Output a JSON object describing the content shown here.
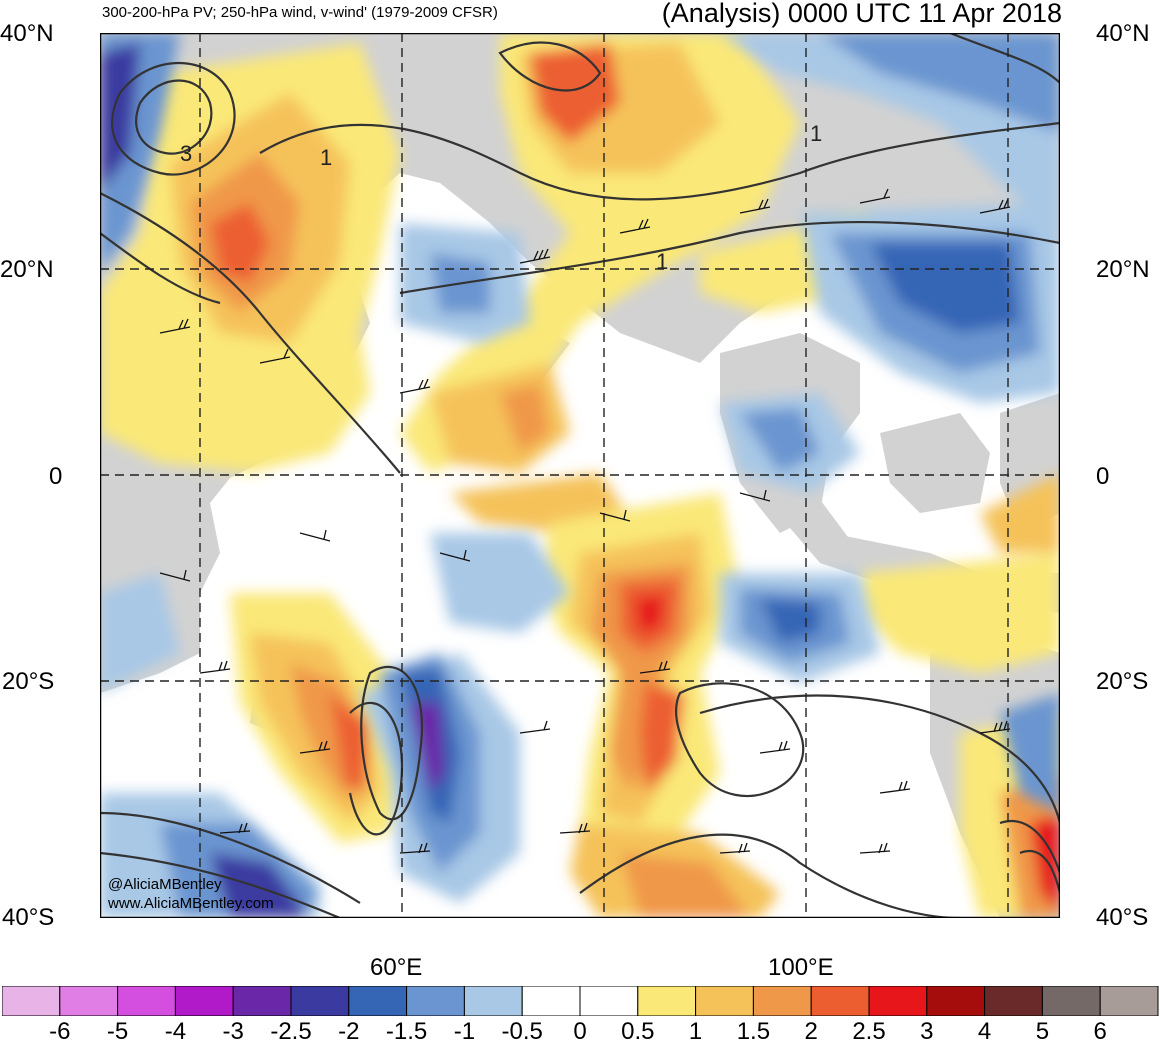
{
  "title": {
    "left": "300-200-hPa PV; 250-hPa wind, v-wind' (1979-2009 CFSR)",
    "right": "(Analysis) 0000 UTC 11 Apr 2018"
  },
  "axes": {
    "lat_labels": [
      "40°N",
      "20°N",
      "0",
      "20°S",
      "40°S"
    ],
    "lon_labels": [
      "60°E",
      "100°E"
    ]
  },
  "contour_labels": [
    "3",
    "1",
    "1",
    "1"
  ],
  "credit": {
    "line1": "@AliciaMBentley",
    "line2": "www.AliciaMBentley.com"
  },
  "colorbar": {
    "colors": [
      "#e8b4e8",
      "#e07ee6",
      "#d44ee0",
      "#b01ac8",
      "#6a28a8",
      "#3a3aa0",
      "#3565b5",
      "#6b95d0",
      "#a8c8e6",
      "#ffffff",
      "#ffffff",
      "#fae878",
      "#f5c25a",
      "#f0984a",
      "#ec5e30",
      "#e6161a",
      "#a50c0c",
      "#6b2a2a",
      "#746966",
      "#a89c99"
    ],
    "labels": [
      "-6",
      "-5",
      "-4",
      "-3",
      "-2.5",
      "-2",
      "-1.5",
      "-1",
      "-0.5",
      "0",
      "0.5",
      "1",
      "1.5",
      "2",
      "2.5",
      "3",
      "4",
      "5",
      "6"
    ]
  },
  "colors": {
    "land": "#d2d2d2",
    "positive_anomaly": "#f0984a",
    "negative_anomaly": "#3565b5"
  }
}
